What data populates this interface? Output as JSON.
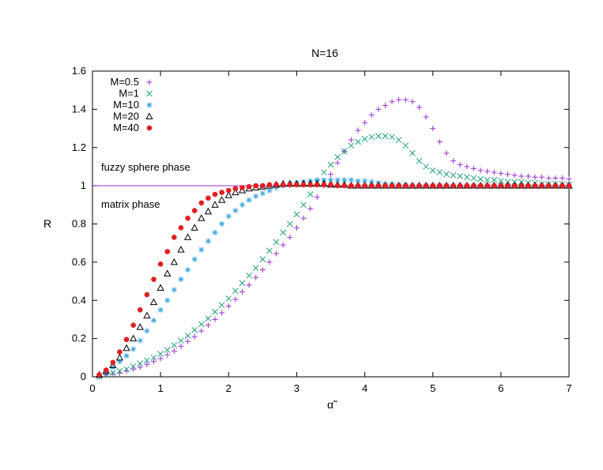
{
  "chart_data": {
    "type": "scatter",
    "title": "N=16",
    "xlabel": "α̃",
    "ylabel": "R",
    "xlim": [
      0,
      7
    ],
    "ylim": [
      0,
      1.6
    ],
    "xticks": [
      "0",
      "1",
      "2",
      "3",
      "4",
      "5",
      "6",
      "7"
    ],
    "yticks": [
      "0",
      "0.2",
      "0.4",
      "0.6",
      "0.8",
      "1",
      "1.2",
      "1.4",
      "1.6"
    ],
    "grid": false,
    "legend_position": "top-left",
    "reference_line": {
      "y": 1,
      "color": "#9b30d9"
    },
    "annotations": [
      "fuzzy sphere phase",
      "matrix phase"
    ],
    "series": [
      {
        "name": "M=0.5",
        "marker": "plus",
        "color": "#9b30d9",
        "x": [
          0.1,
          0.2,
          0.3,
          0.4,
          0.5,
          0.6,
          0.7,
          0.8,
          0.9,
          1.0,
          1.1,
          1.2,
          1.3,
          1.4,
          1.5,
          1.6,
          1.7,
          1.8,
          1.9,
          2.0,
          2.1,
          2.2,
          2.3,
          2.4,
          2.5,
          2.6,
          2.7,
          2.8,
          2.9,
          3.0,
          3.1,
          3.2,
          3.3,
          3.4,
          3.5,
          3.6,
          3.7,
          3.8,
          3.9,
          4.0,
          4.1,
          4.2,
          4.3,
          4.4,
          4.5,
          4.6,
          4.7,
          4.8,
          4.9,
          5.0,
          5.1,
          5.2,
          5.3,
          5.4,
          5.5,
          5.6,
          5.7,
          5.8,
          5.9,
          6.0,
          6.1,
          6.2,
          6.3,
          6.4,
          6.5,
          6.6,
          6.7,
          6.8,
          6.9,
          7.0
        ],
        "y": [
          0.0,
          0.01,
          0.015,
          0.02,
          0.03,
          0.04,
          0.05,
          0.065,
          0.08,
          0.095,
          0.115,
          0.135,
          0.16,
          0.185,
          0.21,
          0.24,
          0.27,
          0.3,
          0.335,
          0.37,
          0.405,
          0.445,
          0.48,
          0.52,
          0.56,
          0.6,
          0.645,
          0.69,
          0.73,
          0.78,
          0.83,
          0.88,
          0.94,
          1.0,
          1.06,
          1.12,
          1.18,
          1.24,
          1.29,
          1.33,
          1.37,
          1.4,
          1.42,
          1.44,
          1.45,
          1.45,
          1.44,
          1.41,
          1.36,
          1.3,
          1.23,
          1.17,
          1.13,
          1.11,
          1.1,
          1.09,
          1.08,
          1.075,
          1.07,
          1.065,
          1.06,
          1.055,
          1.05,
          1.05,
          1.045,
          1.045,
          1.04,
          1.04,
          1.04,
          1.035
        ]
      },
      {
        "name": "M=1",
        "marker": "cross",
        "color": "#21a07c",
        "x": [
          0.1,
          0.2,
          0.3,
          0.4,
          0.5,
          0.6,
          0.7,
          0.8,
          0.9,
          1.0,
          1.1,
          1.2,
          1.3,
          1.4,
          1.5,
          1.6,
          1.7,
          1.8,
          1.9,
          2.0,
          2.1,
          2.2,
          2.3,
          2.4,
          2.5,
          2.6,
          2.7,
          2.8,
          2.9,
          3.0,
          3.1,
          3.2,
          3.3,
          3.4,
          3.5,
          3.6,
          3.7,
          3.8,
          3.9,
          4.0,
          4.1,
          4.2,
          4.3,
          4.4,
          4.5,
          4.6,
          4.7,
          4.8,
          4.9,
          5.0,
          5.1,
          5.2,
          5.3,
          5.4,
          5.5,
          5.6,
          5.7,
          5.8,
          5.9,
          6.0,
          6.1,
          6.2,
          6.3,
          6.4,
          6.5,
          6.6,
          6.7,
          6.8,
          6.9,
          7.0
        ],
        "y": [
          0.0,
          0.01,
          0.02,
          0.03,
          0.04,
          0.055,
          0.07,
          0.085,
          0.1,
          0.12,
          0.14,
          0.165,
          0.19,
          0.215,
          0.245,
          0.275,
          0.305,
          0.34,
          0.375,
          0.41,
          0.45,
          0.49,
          0.53,
          0.57,
          0.615,
          0.66,
          0.705,
          0.755,
          0.8,
          0.85,
          0.9,
          0.955,
          1.02,
          1.07,
          1.11,
          1.15,
          1.18,
          1.21,
          1.23,
          1.245,
          1.255,
          1.26,
          1.26,
          1.255,
          1.24,
          1.21,
          1.17,
          1.13,
          1.1,
          1.08,
          1.07,
          1.06,
          1.055,
          1.05,
          1.045,
          1.04,
          1.035,
          1.03,
          1.03,
          1.025,
          1.02,
          1.02,
          1.02,
          1.015,
          1.015,
          1.01,
          1.01,
          1.01,
          1.01,
          1.005
        ]
      },
      {
        "name": "M=10",
        "marker": "star",
        "color": "#3aa6e0",
        "x": [
          0.1,
          0.2,
          0.3,
          0.4,
          0.5,
          0.6,
          0.7,
          0.8,
          0.9,
          1.0,
          1.1,
          1.2,
          1.3,
          1.4,
          1.5,
          1.6,
          1.7,
          1.8,
          1.9,
          2.0,
          2.1,
          2.2,
          2.3,
          2.4,
          2.5,
          2.6,
          2.7,
          2.8,
          2.9,
          3.0,
          3.1,
          3.2,
          3.3,
          3.4,
          3.5,
          3.6,
          3.7,
          3.8,
          3.9,
          4.0,
          4.1,
          4.2,
          4.3,
          4.4,
          4.5,
          4.6,
          4.7,
          4.8,
          4.9,
          5.0,
          5.1,
          5.2,
          5.3,
          5.4,
          5.5,
          5.6,
          5.7,
          5.8,
          5.9,
          6.0,
          6.1,
          6.2,
          6.3,
          6.4,
          6.5,
          6.6,
          6.7,
          6.8,
          6.9,
          7.0
        ],
        "y": [
          0.005,
          0.025,
          0.05,
          0.08,
          0.11,
          0.145,
          0.19,
          0.24,
          0.295,
          0.35,
          0.4,
          0.455,
          0.51,
          0.56,
          0.615,
          0.665,
          0.71,
          0.755,
          0.8,
          0.84,
          0.87,
          0.9,
          0.925,
          0.945,
          0.96,
          0.975,
          0.99,
          1.0,
          1.01,
          1.015,
          1.02,
          1.025,
          1.03,
          1.03,
          1.03,
          1.03,
          1.03,
          1.03,
          1.025,
          1.025,
          1.02,
          1.015,
          1.01,
          1.01,
          1.005,
          1.005,
          1.0,
          1.0,
          1.0,
          1.0,
          1.0,
          1.0,
          1.0,
          1.0,
          1.0,
          1.0,
          1.0,
          1.0,
          1.0,
          1.0,
          1.0,
          1.0,
          1.0,
          1.0,
          1.0,
          1.0,
          1.0,
          1.0,
          1.0,
          1.0
        ]
      },
      {
        "name": "M=20",
        "marker": "triangle",
        "color": "#000000",
        "x": [
          0.1,
          0.2,
          0.3,
          0.4,
          0.5,
          0.6,
          0.7,
          0.8,
          0.9,
          1.0,
          1.1,
          1.2,
          1.3,
          1.4,
          1.5,
          1.6,
          1.7,
          1.8,
          1.9,
          2.0,
          2.1,
          2.2,
          2.3,
          2.4,
          2.5,
          2.6,
          2.7,
          2.8,
          2.9,
          3.0,
          3.1,
          3.2,
          3.3,
          3.4,
          3.5,
          3.6,
          3.7,
          3.8,
          3.9,
          4.0,
          4.1,
          4.2,
          4.3,
          4.4,
          4.5,
          4.6,
          4.7,
          4.8,
          4.9,
          5.0,
          5.1,
          5.2,
          5.3,
          5.4,
          5.5,
          5.6,
          5.7,
          5.8,
          5.9,
          6.0,
          6.1,
          6.2,
          6.3,
          6.4,
          6.5,
          6.6,
          6.7,
          6.8,
          6.9,
          7.0
        ],
        "y": [
          0.01,
          0.03,
          0.06,
          0.1,
          0.15,
          0.2,
          0.26,
          0.32,
          0.39,
          0.465,
          0.54,
          0.6,
          0.665,
          0.73,
          0.78,
          0.83,
          0.865,
          0.9,
          0.925,
          0.95,
          0.965,
          0.975,
          0.985,
          0.99,
          0.995,
          1.0,
          1.005,
          1.01,
          1.01,
          1.01,
          1.01,
          1.01,
          1.01,
          1.01,
          1.005,
          1.005,
          1.005,
          1.0,
          1.0,
          1.0,
          1.0,
          1.0,
          1.0,
          1.0,
          1.0,
          1.0,
          1.0,
          1.0,
          1.0,
          1.0,
          1.0,
          1.0,
          1.0,
          1.0,
          1.0,
          1.0,
          1.0,
          1.0,
          1.0,
          1.0,
          1.0,
          1.0,
          1.0,
          1.0,
          1.0,
          1.0,
          1.0,
          1.0,
          1.0,
          1.0
        ]
      },
      {
        "name": "M=40",
        "marker": "circle",
        "color": "#e02020",
        "x": [
          0.1,
          0.2,
          0.3,
          0.4,
          0.5,
          0.6,
          0.7,
          0.8,
          0.9,
          1.0,
          1.1,
          1.2,
          1.3,
          1.4,
          1.5,
          1.6,
          1.7,
          1.8,
          1.9,
          2.0,
          2.1,
          2.2,
          2.3,
          2.4,
          2.5,
          2.6,
          2.7,
          2.8,
          2.9,
          3.0,
          3.1,
          3.2,
          3.3,
          3.4,
          3.5,
          3.6,
          3.7,
          3.8,
          3.9,
          4.0,
          4.1,
          4.2,
          4.3,
          4.4,
          4.5,
          4.6,
          4.7,
          4.8,
          4.9,
          5.0,
          5.1,
          5.2,
          5.3,
          5.4,
          5.5,
          5.6,
          5.7,
          5.8,
          5.9,
          6.0,
          6.1,
          6.2,
          6.3,
          6.4,
          6.5,
          6.6,
          6.7,
          6.8,
          6.9,
          7.0
        ],
        "y": [
          0.01,
          0.035,
          0.075,
          0.13,
          0.195,
          0.27,
          0.35,
          0.43,
          0.51,
          0.59,
          0.655,
          0.73,
          0.78,
          0.83,
          0.87,
          0.91,
          0.935,
          0.955,
          0.965,
          0.975,
          0.985,
          0.99,
          0.995,
          1.0,
          1.0,
          1.005,
          1.005,
          1.005,
          1.005,
          1.005,
          1.005,
          1.005,
          1.005,
          1.005,
          1.005,
          1.0,
          1.0,
          1.0,
          1.0,
          1.0,
          1.0,
          1.0,
          1.0,
          1.0,
          1.0,
          1.0,
          1.0,
          1.0,
          1.0,
          1.0,
          1.0,
          1.0,
          1.0,
          1.0,
          1.0,
          1.0,
          1.0,
          1.0,
          1.0,
          1.0,
          1.0,
          1.0,
          1.0,
          1.0,
          1.0,
          1.0,
          1.0,
          1.0,
          1.0,
          1.0
        ]
      }
    ]
  }
}
